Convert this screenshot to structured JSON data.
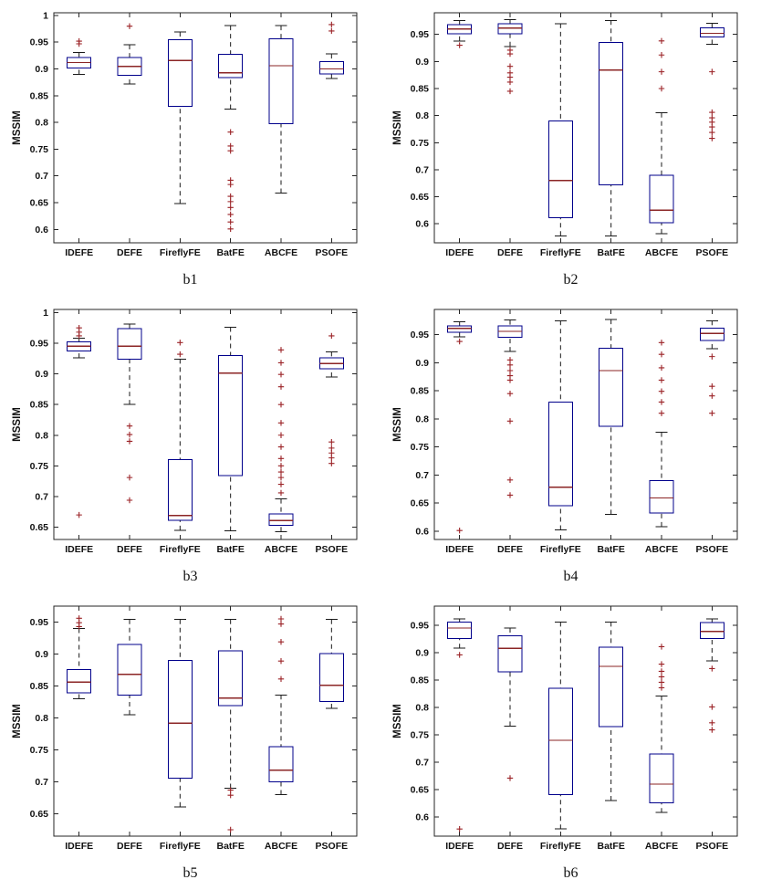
{
  "chart_data": {
    "type": "boxplot",
    "categories": [
      "IDEFE",
      "DEFE",
      "FireflyFE",
      "BatFE",
      "ABCFE",
      "PSOFE"
    ],
    "ylabel": "MSSIM",
    "grid": false,
    "legend": "none",
    "colors": {
      "box": "#00008b",
      "median": "#8b2525",
      "whisker": "#1a1a1a",
      "outlier": "#9b2226",
      "axis": "#262626"
    },
    "panels": [
      {
        "label": "b1",
        "ylim": [
          0.575,
          1.005
        ],
        "yticks": [
          0.6,
          0.65,
          0.7,
          0.75,
          0.8,
          0.85,
          0.9,
          0.95,
          1
        ],
        "boxes": [
          {
            "lo": 0.89,
            "q1": 0.902,
            "med": 0.912,
            "q3": 0.921,
            "hi": 0.931,
            "out": [
              0.952,
              0.947
            ]
          },
          {
            "lo": 0.872,
            "q1": 0.888,
            "med": 0.905,
            "q3": 0.921,
            "hi": 0.945,
            "out": [
              0.98
            ]
          },
          {
            "lo": 0.648,
            "q1": 0.83,
            "med": 0.916,
            "q3": 0.955,
            "hi": 0.969,
            "out": []
          },
          {
            "lo": 0.825,
            "q1": 0.884,
            "med": 0.893,
            "q3": 0.927,
            "hi": 0.981,
            "out": [
              0.782,
              0.756,
              0.747,
              0.692,
              0.684,
              0.662,
              0.652,
              0.641,
              0.628,
              0.614,
              0.601
            ]
          },
          {
            "lo": 0.668,
            "q1": 0.798,
            "med": 0.906,
            "q3": 0.956,
            "hi": 0.981,
            "out": []
          },
          {
            "lo": 0.882,
            "q1": 0.891,
            "med": 0.9,
            "q3": 0.914,
            "hi": 0.928,
            "out": [
              0.983,
              0.971
            ]
          }
        ]
      },
      {
        "label": "b2",
        "ylim": [
          0.565,
          0.99
        ],
        "yticks": [
          0.6,
          0.65,
          0.7,
          0.75,
          0.8,
          0.85,
          0.9,
          0.95
        ],
        "boxes": [
          {
            "lo": 0.938,
            "q1": 0.951,
            "med": 0.96,
            "q3": 0.968,
            "hi": 0.976,
            "out": [
              0.93
            ]
          },
          {
            "lo": 0.928,
            "q1": 0.951,
            "med": 0.962,
            "q3": 0.97,
            "hi": 0.977,
            "out": [
              0.921,
              0.914,
              0.891,
              0.879,
              0.871,
              0.862,
              0.845
            ]
          },
          {
            "lo": 0.578,
            "q1": 0.611,
            "med": 0.68,
            "q3": 0.79,
            "hi": 0.97,
            "out": []
          },
          {
            "lo": 0.578,
            "q1": 0.672,
            "med": 0.884,
            "q3": 0.935,
            "hi": 0.976,
            "out": []
          },
          {
            "lo": 0.582,
            "q1": 0.602,
            "med": 0.625,
            "q3": 0.69,
            "hi": 0.805,
            "out": [
              0.938,
              0.912,
              0.881,
              0.85
            ]
          },
          {
            "lo": 0.932,
            "q1": 0.945,
            "med": 0.952,
            "q3": 0.962,
            "hi": 0.971,
            "out": [
              0.881,
              0.806,
              0.796,
              0.788,
              0.779,
              0.769,
              0.758
            ]
          }
        ]
      },
      {
        "label": "b3",
        "ylim": [
          0.63,
          1.005
        ],
        "yticks": [
          0.65,
          0.7,
          0.75,
          0.8,
          0.85,
          0.9,
          0.95,
          1
        ],
        "boxes": [
          {
            "lo": 0.926,
            "q1": 0.937,
            "med": 0.945,
            "q3": 0.952,
            "hi": 0.958,
            "out": [
              0.975,
              0.968,
              0.962,
              0.67
            ]
          },
          {
            "lo": 0.85,
            "q1": 0.924,
            "med": 0.945,
            "q3": 0.974,
            "hi": 0.981,
            "out": [
              0.815,
              0.801,
              0.79,
              0.731,
              0.694
            ]
          },
          {
            "lo": 0.645,
            "q1": 0.661,
            "med": 0.669,
            "q3": 0.76,
            "hi": 0.924,
            "out": [
              0.951,
              0.932
            ]
          },
          {
            "lo": 0.644,
            "q1": 0.734,
            "med": 0.901,
            "q3": 0.93,
            "hi": 0.976,
            "out": []
          },
          {
            "lo": 0.643,
            "q1": 0.653,
            "med": 0.661,
            "q3": 0.672,
            "hi": 0.696,
            "out": [
              0.939,
              0.918,
              0.899,
              0.879,
              0.85,
              0.82,
              0.8,
              0.781,
              0.762,
              0.75,
              0.74,
              0.731,
              0.72,
              0.706
            ]
          },
          {
            "lo": 0.895,
            "q1": 0.908,
            "med": 0.917,
            "q3": 0.926,
            "hi": 0.936,
            "out": [
              0.962,
              0.789,
              0.779,
              0.771,
              0.763,
              0.754
            ]
          }
        ]
      },
      {
        "label": "b4",
        "ylim": [
          0.585,
          0.995
        ],
        "yticks": [
          0.6,
          0.65,
          0.7,
          0.75,
          0.8,
          0.85,
          0.9,
          0.95
        ],
        "boxes": [
          {
            "lo": 0.946,
            "q1": 0.954,
            "med": 0.961,
            "q3": 0.966,
            "hi": 0.973,
            "out": [
              0.938,
              0.601
            ]
          },
          {
            "lo": 0.92,
            "q1": 0.945,
            "med": 0.956,
            "q3": 0.966,
            "hi": 0.976,
            "out": [
              0.905,
              0.896,
              0.886,
              0.877,
              0.869,
              0.845,
              0.796,
              0.691,
              0.664
            ]
          },
          {
            "lo": 0.602,
            "q1": 0.645,
            "med": 0.678,
            "q3": 0.83,
            "hi": 0.975,
            "out": []
          },
          {
            "lo": 0.63,
            "q1": 0.787,
            "med": 0.886,
            "q3": 0.926,
            "hi": 0.977,
            "out": []
          },
          {
            "lo": 0.608,
            "q1": 0.632,
            "med": 0.659,
            "q3": 0.69,
            "hi": 0.776,
            "out": [
              0.936,
              0.915,
              0.891,
              0.869,
              0.849,
              0.83,
              0.81
            ]
          },
          {
            "lo": 0.925,
            "q1": 0.94,
            "med": 0.952,
            "q3": 0.962,
            "hi": 0.975,
            "out": [
              0.911,
              0.858,
              0.841,
              0.81
            ]
          }
        ]
      },
      {
        "label": "b5",
        "ylim": [
          0.615,
          0.975
        ],
        "yticks": [
          0.65,
          0.7,
          0.75,
          0.8,
          0.85,
          0.9,
          0.95
        ],
        "boxes": [
          {
            "lo": 0.83,
            "q1": 0.839,
            "med": 0.856,
            "q3": 0.876,
            "hi": 0.94,
            "out": [
              0.956,
              0.949,
              0.943
            ]
          },
          {
            "lo": 0.805,
            "q1": 0.836,
            "med": 0.868,
            "q3": 0.915,
            "hi": 0.954,
            "out": []
          },
          {
            "lo": 0.661,
            "q1": 0.706,
            "med": 0.792,
            "q3": 0.89,
            "hi": 0.954,
            "out": []
          },
          {
            "lo": 0.69,
            "q1": 0.819,
            "med": 0.831,
            "q3": 0.905,
            "hi": 0.954,
            "out": [
              0.687,
              0.679,
              0.625
            ]
          },
          {
            "lo": 0.68,
            "q1": 0.7,
            "med": 0.718,
            "q3": 0.755,
            "hi": 0.836,
            "out": [
              0.955,
              0.947,
              0.919,
              0.889,
              0.861
            ]
          },
          {
            "lo": 0.815,
            "q1": 0.826,
            "med": 0.851,
            "q3": 0.901,
            "hi": 0.954,
            "out": []
          }
        ]
      },
      {
        "label": "b6",
        "ylim": [
          0.565,
          0.985
        ],
        "yticks": [
          0.6,
          0.65,
          0.7,
          0.75,
          0.8,
          0.85,
          0.9,
          0.95
        ],
        "boxes": [
          {
            "lo": 0.908,
            "q1": 0.926,
            "med": 0.945,
            "q3": 0.956,
            "hi": 0.962,
            "out": [
              0.896,
              0.578
            ]
          },
          {
            "lo": 0.766,
            "q1": 0.865,
            "med": 0.908,
            "q3": 0.931,
            "hi": 0.945,
            "out": [
              0.671
            ]
          },
          {
            "lo": 0.578,
            "q1": 0.641,
            "med": 0.74,
            "q3": 0.835,
            "hi": 0.956,
            "out": []
          },
          {
            "lo": 0.63,
            "q1": 0.765,
            "med": 0.875,
            "q3": 0.91,
            "hi": 0.956,
            "out": []
          },
          {
            "lo": 0.608,
            "q1": 0.626,
            "med": 0.66,
            "q3": 0.715,
            "hi": 0.821,
            "out": [
              0.911,
              0.879,
              0.866,
              0.856,
              0.846,
              0.836
            ]
          },
          {
            "lo": 0.885,
            "q1": 0.926,
            "med": 0.939,
            "q3": 0.955,
            "hi": 0.962,
            "out": [
              0.871,
              0.801,
              0.772,
              0.759
            ]
          }
        ]
      }
    ]
  }
}
